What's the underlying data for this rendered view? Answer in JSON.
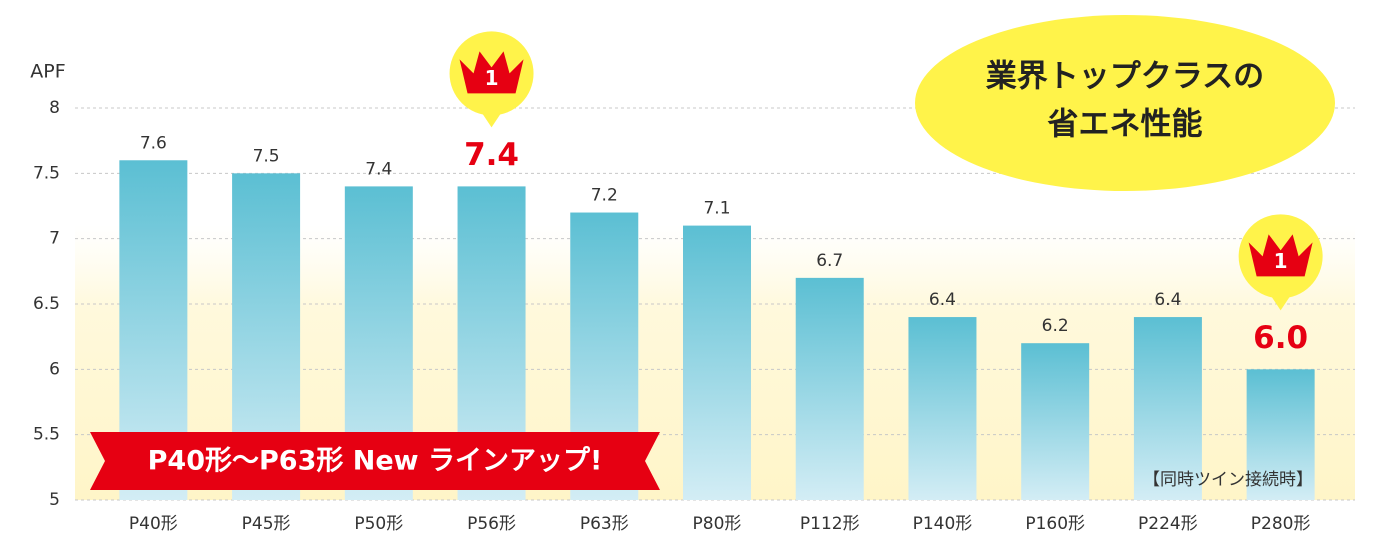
{
  "chart_data": {
    "type": "bar",
    "y_label": "APF",
    "categories": [
      "P40形",
      "P45形",
      "P50形",
      "P56形",
      "P63形",
      "P80形",
      "P112形",
      "P140形",
      "P160形",
      "P224形",
      "P280形"
    ],
    "values": [
      7.6,
      7.5,
      7.4,
      7.4,
      7.2,
      7.1,
      6.7,
      6.4,
      6.2,
      6.4,
      6.0
    ],
    "value_labels": [
      "7.6",
      "7.5",
      "7.4",
      "7.4",
      "7.2",
      "7.1",
      "6.7",
      "6.4",
      "6.2",
      "6.4",
      "6.0"
    ],
    "color": "#5bbfd3",
    "highlight_color": "#e60012",
    "highlights": [
      {
        "category": "P56形",
        "badge": "1"
      },
      {
        "category": "P280形",
        "badge": "1"
      }
    ],
    "ylim": [
      5,
      8
    ],
    "yticks": [
      5,
      5.5,
      6,
      6.5,
      7,
      7.5,
      8
    ],
    "grid": true,
    "bubble": [
      "業界トップクラスの",
      "省エネ性能"
    ],
    "banner": "P40形～P63形  New ラインアップ!",
    "note": "【同時ツイン接続時】"
  }
}
